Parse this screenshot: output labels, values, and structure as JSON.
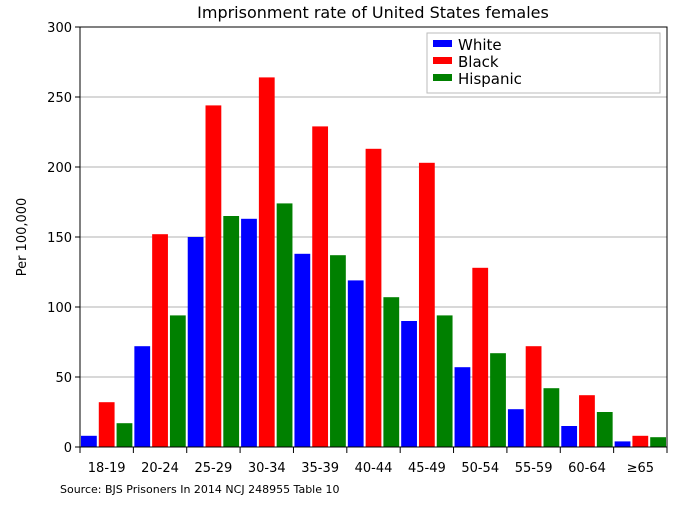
{
  "chart_data": {
    "type": "bar",
    "title": "Imprisonment rate of United States females",
    "xlabel": "",
    "ylabel": "Per 100,000",
    "ylim": [
      0,
      300
    ],
    "yticks": [
      0,
      50,
      100,
      150,
      200,
      250,
      300
    ],
    "grid": "horizontal",
    "legend_position": "top-right",
    "categories": [
      "18-19",
      "20-24",
      "25-29",
      "30-34",
      "35-39",
      "40-44",
      "45-49",
      "50-54",
      "55-59",
      "60-64",
      "≥65"
    ],
    "series": [
      {
        "name": "White",
        "color": "#0000ff",
        "values": [
          8,
          72,
          150,
          163,
          138,
          119,
          90,
          57,
          27,
          15,
          4
        ]
      },
      {
        "name": "Black",
        "color": "#ff0000",
        "values": [
          32,
          152,
          244,
          264,
          229,
          213,
          203,
          128,
          72,
          37,
          8
        ]
      },
      {
        "name": "Hispanic",
        "color": "#008000",
        "values": [
          17,
          94,
          165,
          174,
          137,
          107,
          94,
          67,
          42,
          25,
          7
        ]
      }
    ],
    "source": "Source: BJS Prisoners In 2014 NCJ 248955 Table 10"
  }
}
